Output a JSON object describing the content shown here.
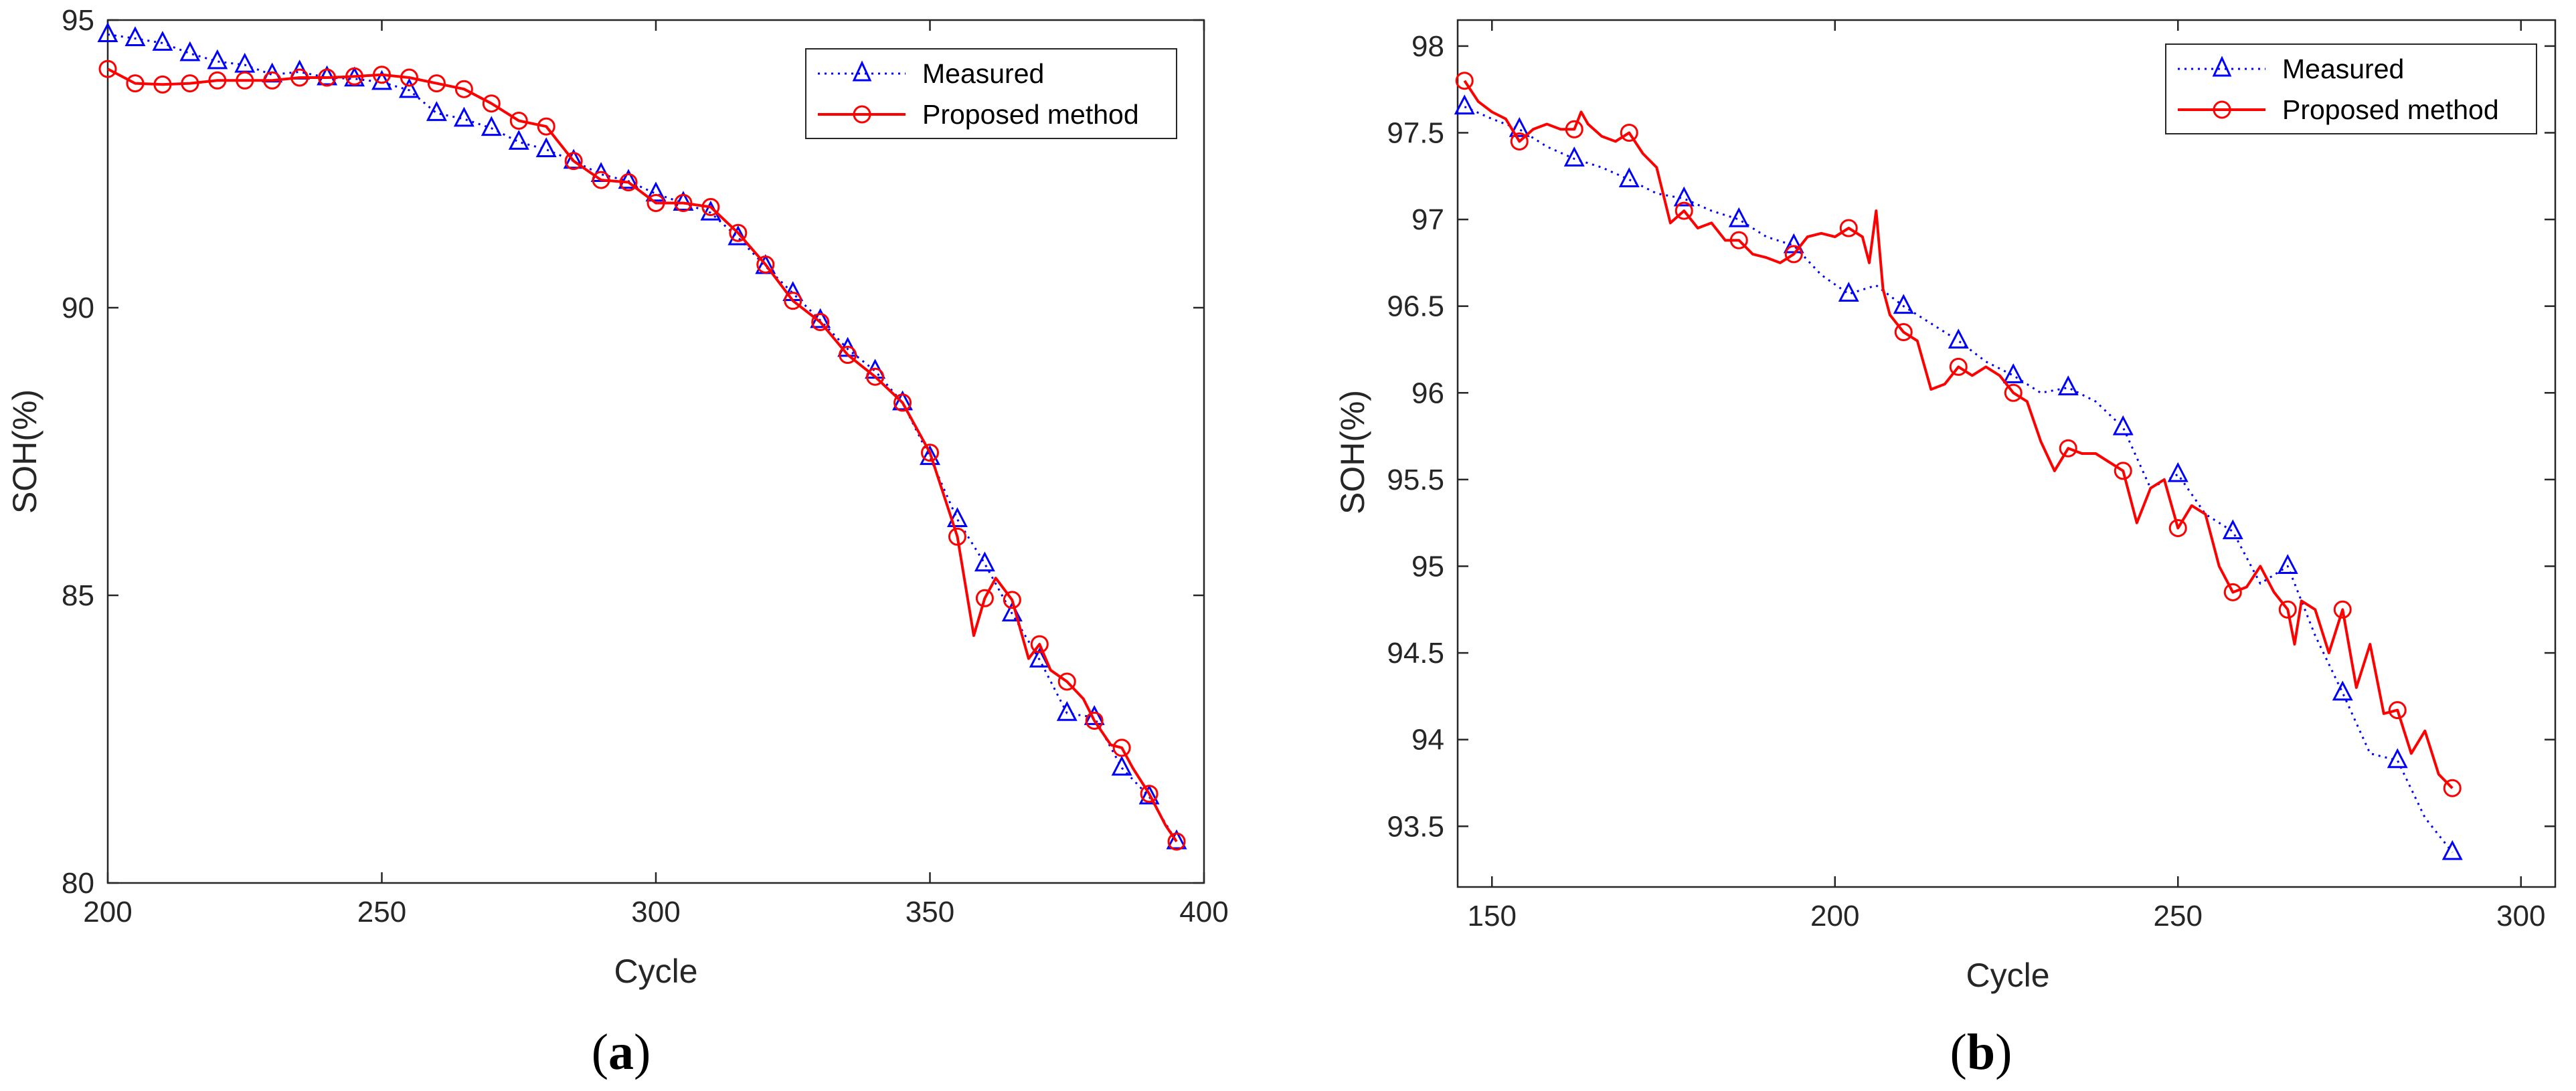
{
  "colors": {
    "measured": "#0000ff",
    "proposed": "#ff0000",
    "axis": "#262626"
  },
  "legend": {
    "measured": "Measured",
    "proposed": "Proposed method"
  },
  "chart_data": [
    {
      "type": "line",
      "panel": "a",
      "caption": {
        "open": "(",
        "letter": "a",
        "close": ")"
      },
      "xlabel": "Cycle",
      "ylabel": "SOH(%)",
      "xlim": [
        200,
        400
      ],
      "ylim": [
        80,
        95
      ],
      "xticks": [
        200,
        250,
        300,
        350,
        400
      ],
      "yticks": [
        80,
        85,
        90,
        95
      ],
      "series": [
        {
          "name": "Measured",
          "x": [
            200,
            205,
            210,
            215,
            220,
            225,
            230,
            235,
            240,
            245,
            250,
            255,
            260,
            265,
            270,
            275,
            280,
            285,
            290,
            295,
            300,
            305,
            310,
            315,
            320,
            325,
            330,
            335,
            340,
            345,
            350,
            355,
            360,
            365,
            370,
            375,
            380,
            385,
            390,
            395
          ],
          "y": [
            94.75,
            94.68,
            94.6,
            94.42,
            94.28,
            94.22,
            94.05,
            94.1,
            94.0,
            93.98,
            93.92,
            93.78,
            93.38,
            93.28,
            93.12,
            92.88,
            92.75,
            92.55,
            92.32,
            92.2,
            91.98,
            91.82,
            91.65,
            91.22,
            90.72,
            90.25,
            89.78,
            89.28,
            88.9,
            88.35,
            87.4,
            86.32,
            85.55,
            84.68,
            83.88,
            82.95,
            82.88,
            82.0,
            81.5,
            80.72
          ]
        },
        {
          "name": "Proposed method",
          "x": [
            200,
            205,
            210,
            215,
            220,
            225,
            230,
            235,
            240,
            245,
            250,
            255,
            260,
            265,
            270,
            275,
            280,
            285,
            290,
            295,
            300,
            305,
            310,
            315,
            320,
            325,
            330,
            335,
            340,
            345,
            350,
            355,
            358,
            360,
            362,
            365,
            368,
            370,
            372,
            375,
            378,
            380,
            383,
            385,
            387,
            390,
            393,
            395
          ],
          "y": [
            94.15,
            93.9,
            93.88,
            93.9,
            93.95,
            93.95,
            93.95,
            94.0,
            94.0,
            94.02,
            94.05,
            94.0,
            93.9,
            93.8,
            93.55,
            93.25,
            93.15,
            92.55,
            92.22,
            92.18,
            91.82,
            91.82,
            91.75,
            91.3,
            90.75,
            90.12,
            89.75,
            89.18,
            88.8,
            88.35,
            87.48,
            86.02,
            84.3,
            84.95,
            85.3,
            84.92,
            83.9,
            84.15,
            83.7,
            83.5,
            83.2,
            82.82,
            82.4,
            82.35,
            82.0,
            81.55,
            81.0,
            80.72
          ],
          "markers_x": [
            200,
            205,
            210,
            215,
            220,
            225,
            230,
            235,
            240,
            245,
            250,
            255,
            260,
            265,
            270,
            275,
            280,
            285,
            290,
            295,
            300,
            305,
            310,
            315,
            320,
            325,
            330,
            335,
            340,
            345,
            350,
            355,
            360,
            365,
            370,
            375,
            380,
            385,
            390,
            395
          ],
          "markers_y": [
            94.15,
            93.9,
            93.88,
            93.9,
            93.95,
            93.95,
            93.95,
            94.0,
            94.0,
            94.02,
            94.05,
            94.0,
            93.9,
            93.8,
            93.55,
            93.25,
            93.15,
            92.55,
            92.22,
            92.18,
            91.82,
            91.82,
            91.75,
            91.3,
            90.75,
            90.12,
            89.75,
            89.18,
            88.8,
            88.35,
            87.48,
            86.02,
            84.95,
            84.92,
            84.15,
            83.5,
            82.82,
            82.35,
            81.55,
            80.72
          ]
        }
      ]
    },
    {
      "type": "line",
      "panel": "b",
      "caption": {
        "open": "(",
        "letter": "b",
        "close": ")"
      },
      "xlabel": "Cycle",
      "ylabel": "SOH(%)",
      "xlim": [
        145,
        305
      ],
      "ylim": [
        93.15,
        98.15
      ],
      "xticks": [
        150,
        200,
        250,
        300
      ],
      "yticks": [
        93.5,
        94,
        94.5,
        95,
        95.5,
        96,
        96.5,
        97,
        97.5,
        98
      ],
      "ytick_labels": [
        "93.5",
        "94",
        "94.5",
        "95",
        "95.5",
        "96",
        "96.5",
        "97",
        "97.5",
        "98"
      ],
      "series": [
        {
          "name": "Measured",
          "x": [
            146,
            150,
            154,
            158,
            162,
            166,
            170,
            174,
            178,
            182,
            186,
            190,
            194,
            198,
            202,
            206,
            210,
            214,
            218,
            222,
            226,
            230,
            234,
            238,
            242,
            246,
            250,
            254,
            258,
            262,
            266,
            270,
            274,
            278,
            282,
            286,
            290
          ],
          "y": [
            97.65,
            97.58,
            97.52,
            97.42,
            97.35,
            97.3,
            97.23,
            97.15,
            97.12,
            97.05,
            97.0,
            96.9,
            96.85,
            96.68,
            96.57,
            96.62,
            96.5,
            96.4,
            96.3,
            96.18,
            96.1,
            96.0,
            96.03,
            95.95,
            95.8,
            95.45,
            95.53,
            95.3,
            95.2,
            94.9,
            95.0,
            94.6,
            94.27,
            93.92,
            93.88,
            93.55,
            93.35
          ],
          "markers_x": [
            146,
            154,
            162,
            170,
            178,
            186,
            194,
            202,
            210,
            218,
            226,
            234,
            242,
            250,
            258,
            266,
            274,
            282,
            290
          ],
          "markers_y": [
            97.65,
            97.52,
            97.35,
            97.23,
            97.12,
            97.0,
            96.85,
            96.57,
            96.5,
            96.3,
            96.1,
            96.03,
            95.8,
            95.53,
            95.2,
            95.0,
            94.27,
            93.88,
            93.35
          ]
        },
        {
          "name": "Proposed method",
          "x": [
            146,
            148,
            150,
            152,
            154,
            156,
            158,
            160,
            162,
            163,
            164,
            166,
            168,
            170,
            172,
            174,
            176,
            178,
            180,
            182,
            184,
            186,
            188,
            190,
            192,
            194,
            196,
            198,
            200,
            202,
            204,
            205,
            206,
            207,
            208,
            210,
            212,
            214,
            216,
            218,
            220,
            222,
            224,
            226,
            228,
            230,
            232,
            234,
            236,
            238,
            240,
            242,
            244,
            246,
            248,
            250,
            252,
            254,
            256,
            258,
            260,
            262,
            264,
            266,
            267,
            268,
            270,
            272,
            274,
            276,
            278,
            280,
            282,
            284,
            286,
            288,
            290
          ],
          "y": [
            97.8,
            97.68,
            97.62,
            97.58,
            97.45,
            97.52,
            97.55,
            97.52,
            97.52,
            97.62,
            97.55,
            97.48,
            97.45,
            97.5,
            97.38,
            97.3,
            96.98,
            97.05,
            96.95,
            96.98,
            96.88,
            96.88,
            96.8,
            96.78,
            96.75,
            96.8,
            96.9,
            96.92,
            96.9,
            96.95,
            96.9,
            96.75,
            97.05,
            96.6,
            96.45,
            96.35,
            96.3,
            96.02,
            96.05,
            96.15,
            96.1,
            96.15,
            96.1,
            96.0,
            95.95,
            95.72,
            95.55,
            95.68,
            95.65,
            95.65,
            95.6,
            95.55,
            95.25,
            95.45,
            95.5,
            95.22,
            95.35,
            95.3,
            95.0,
            94.85,
            94.88,
            95.0,
            94.85,
            94.75,
            94.55,
            94.8,
            94.75,
            94.5,
            94.75,
            94.3,
            94.55,
            94.15,
            94.17,
            93.92,
            94.05,
            93.8,
            93.72
          ],
          "markers_x": [
            146,
            154,
            162,
            170,
            178,
            186,
            194,
            202,
            210,
            218,
            226,
            234,
            242,
            250,
            258,
            266,
            274,
            282,
            290
          ],
          "markers_y": [
            97.8,
            97.45,
            97.52,
            97.5,
            97.05,
            96.88,
            96.8,
            96.95,
            96.35,
            96.15,
            96.0,
            95.68,
            95.55,
            95.22,
            94.85,
            94.75,
            94.75,
            94.17,
            93.72
          ]
        }
      ]
    }
  ]
}
